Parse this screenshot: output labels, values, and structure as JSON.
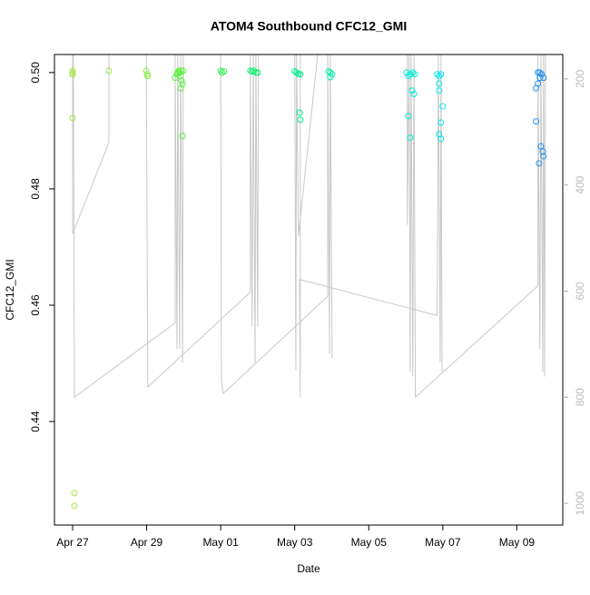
{
  "chart_data": {
    "type": "scatter",
    "title": "ATOM4 Southbound CFC12_GMI",
    "xlabel": "Date",
    "ylabel": "CFC12_GMI",
    "xlim": [
      -0.49,
      13.24
    ],
    "ylim": [
      0.4222,
      0.5031
    ],
    "y2lim": [
      1041,
      154
    ],
    "xticks": [
      {
        "value": 0,
        "label": "Apr 27"
      },
      {
        "value": 2,
        "label": "Apr 29"
      },
      {
        "value": 4,
        "label": "May 01"
      },
      {
        "value": 6,
        "label": "May 03"
      },
      {
        "value": 8,
        "label": "May 05"
      },
      {
        "value": 10,
        "label": "May 07"
      },
      {
        "value": 12,
        "label": "May 09"
      }
    ],
    "yticks": [
      0.44,
      0.46,
      0.48,
      {
        "value": 0.5,
        "label": "0.50"
      }
    ],
    "y2ticks": [
      200,
      400,
      600,
      800,
      1000
    ],
    "series": [
      {
        "type": "scatter",
        "marker": "circle",
        "x": [
          0,
          0,
          0,
          0,
          0.05,
          0.05,
          0.98,
          1.99,
          2.01,
          2.03,
          2.77,
          2.82,
          2.84,
          2.87,
          2.89,
          2.92,
          2.94,
          2.99,
          2.94,
          2.97,
          2.92,
          2.97,
          4.0,
          4.04,
          4.09,
          4.8,
          4.85,
          4.9,
          4.95,
          5.0,
          6.0,
          6.05,
          6.1,
          6.15,
          6.13,
          6.15,
          6.91,
          6.96,
          7.01,
          6.96,
          9.02,
          9.07,
          9.12,
          9.19,
          9.24,
          9.07,
          9.12,
          9.17,
          9.22,
          9.85,
          9.9,
          9.95,
          9.9,
          9.9,
          10.0,
          9.95,
          9.9,
          9.95,
          12.52,
          12.57,
          12.62,
          12.67,
          12.72,
          12.57,
          12.62,
          12.52,
          12.6,
          12.65,
          12.7,
          12.72
        ],
        "values": [
          0.5003,
          0.5,
          0.4997,
          0.4922,
          0.4277,
          0.4255,
          0.5003,
          0.5003,
          0.4997,
          0.4994,
          0.4991,
          0.4997,
          0.5,
          0.5003,
          0.5,
          0.4994,
          0.5003,
          0.5003,
          0.4986,
          0.498,
          0.4973,
          0.4891,
          0.5003,
          0.5,
          0.5002,
          0.5003,
          0.5002,
          0.5003,
          0.5,
          0.5,
          0.5002,
          0.5,
          0.4998,
          0.4997,
          0.4931,
          0.4919,
          0.5002,
          0.5,
          0.4997,
          0.4992,
          0.5,
          0.4994,
          0.4997,
          0.5,
          0.4997,
          0.4925,
          0.4888,
          0.4969,
          0.4963,
          0.4997,
          0.4994,
          0.4997,
          0.4981,
          0.4969,
          0.4942,
          0.4914,
          0.4894,
          0.4886,
          0.4973,
          0.4981,
          0.4991,
          0.4997,
          0.4991,
          0.5,
          0.5,
          0.4916,
          0.4844,
          0.4873,
          0.4864,
          0.4856
        ],
        "colors": [
          "#a8e83c",
          "#a8e83c",
          "#a8e83c",
          "#a8e83c",
          "#a8e83c",
          "#a8e83c",
          "#96ec3c",
          "#80f040",
          "#80f040",
          "#80f040",
          "#5cf040",
          "#5cf040",
          "#5cf040",
          "#5cf040",
          "#5cf040",
          "#5cf040",
          "#5cf040",
          "#5cf040",
          "#5cf040",
          "#5cf040",
          "#5cf040",
          "#5cf040",
          "#2cf050",
          "#2cf050",
          "#2cf050",
          "#10f070",
          "#10f070",
          "#10f070",
          "#10f070",
          "#10f070",
          "#00f090",
          "#00f090",
          "#00f090",
          "#00f090",
          "#00f090",
          "#00f090",
          "#00f0a8",
          "#00f0a8",
          "#00f0a8",
          "#00f0a8",
          "#00f0d8",
          "#00f0d8",
          "#00f0d8",
          "#00f0d8",
          "#00f0d8",
          "#00f0d8",
          "#00f0d8",
          "#00f0d8",
          "#00f0d8",
          "#00e8f0",
          "#00e8f0",
          "#00e8f0",
          "#00e8f0",
          "#00e8f0",
          "#00e8f0",
          "#00e8f0",
          "#00e8f0",
          "#00e8f0",
          "#2090f0",
          "#2090f0",
          "#2090f0",
          "#2090f0",
          "#2090f0",
          "#2090f0",
          "#2090f0",
          "#2090f0",
          "#2090f0",
          "#2090f0",
          "#2090f0",
          "#2090f0"
        ]
      },
      {
        "type": "line",
        "axis": "y2",
        "color": "#c8c8c8",
        "x": [
          0,
          0,
          0.98,
          0.98,
          null,
          0.02,
          0.05,
          2.77,
          2.77,
          2.82,
          2.84,
          2.89,
          2.92,
          2.97,
          2.99,
          null,
          1.99,
          2.03,
          4.8,
          4.8,
          4.85,
          4.88,
          4.93,
          4.95,
          5.0,
          5.02,
          null,
          4.0,
          4.02,
          4.07,
          6.89,
          6.89,
          6.94,
          6.96,
          7.01,
          null,
          6.0,
          6.03,
          6.05,
          6.1,
          6.62,
          null,
          6.15,
          6.15,
          6.13,
          9.85,
          9.88,
          9.93,
          9.95,
          9.98,
          null,
          9.04,
          9.04,
          9.09,
          9.12,
          9.14,
          9.19,
          9.22,
          9.26,
          12.57,
          12.57,
          12.62,
          12.65,
          12.7,
          12.72,
          12.75,
          12.77
        ],
        "values": [
          154,
          492,
          320,
          154,
          null,
          154,
          800,
          660,
          154,
          709,
          154,
          709,
          154,
          735,
          154,
          null,
          154,
          781,
          602,
          154,
          667,
          154,
          735,
          154,
          667,
          154,
          null,
          154,
          769,
          793,
          610,
          154,
          718,
          154,
          726,
          null,
          154,
          749,
          154,
          496,
          154,
          null,
          154,
          800,
          578,
          646,
          154,
          735,
          154,
          752,
          null,
          154,
          475,
          154,
          752,
          154,
          761,
          154,
          800,
          590,
          154,
          709,
          154,
          752,
          154,
          761,
          154
        ]
      }
    ]
  }
}
